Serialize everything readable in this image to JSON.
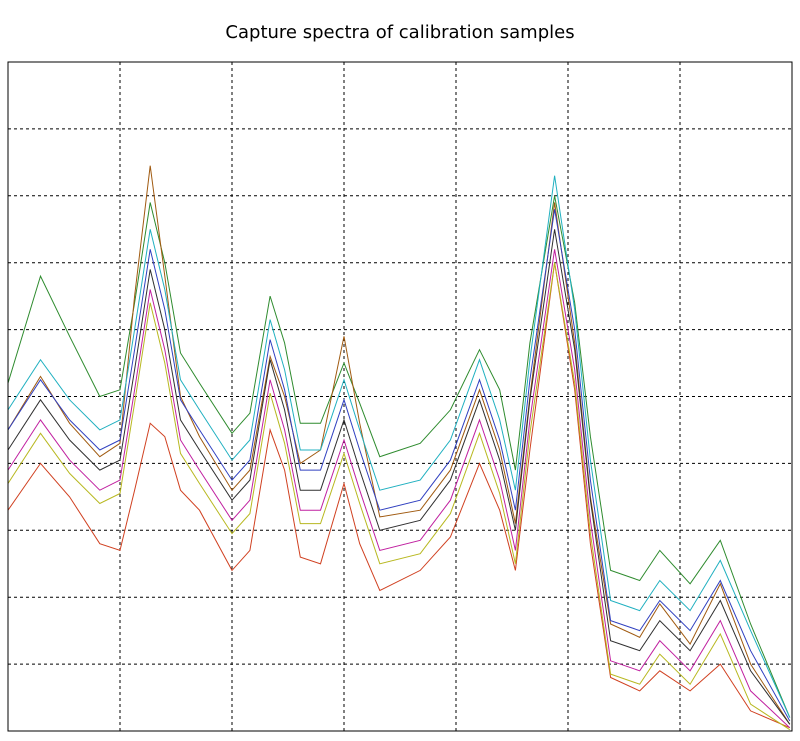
{
  "chart_data": {
    "type": "line",
    "title": "Capture spectra of calibration samples",
    "x": [
      0,
      29,
      55,
      82,
      100,
      113,
      127,
      140,
      154,
      171,
      200,
      216,
      234,
      247,
      261,
      279,
      300,
      314,
      332,
      368,
      395,
      421,
      439,
      453,
      466,
      488,
      506,
      520,
      538,
      564,
      582,
      609,
      636,
      663,
      698
    ],
    "series": [
      {
        "color": "#2e8b2e",
        "values": [
          5.2,
          6.8,
          5.9,
          5.0,
          5.1,
          6.4,
          7.9,
          7.0,
          5.65,
          5.2,
          4.45,
          4.75,
          6.5,
          5.8,
          4.6,
          4.6,
          5.5,
          4.9,
          4.1,
          4.3,
          4.8,
          5.7,
          5.1,
          3.9,
          5.8,
          8.0,
          6.4,
          4.4,
          2.4,
          2.25,
          2.7,
          2.2,
          2.85,
          1.6,
          0.2
        ]
      },
      {
        "color": "#d04020",
        "values": [
          3.3,
          4.0,
          3.5,
          2.8,
          2.7,
          3.6,
          4.6,
          4.4,
          3.6,
          3.3,
          2.4,
          2.7,
          4.5,
          3.9,
          2.6,
          2.5,
          3.7,
          2.8,
          2.1,
          2.4,
          2.9,
          4.0,
          3.3,
          2.4,
          4.2,
          7.0,
          5.1,
          2.8,
          0.8,
          0.6,
          0.9,
          0.6,
          1.0,
          0.3,
          0.05
        ]
      },
      {
        "color": "#a05a10",
        "values": [
          4.5,
          5.3,
          4.6,
          4.1,
          4.3,
          6.5,
          8.45,
          6.8,
          5.0,
          4.4,
          3.6,
          3.9,
          5.6,
          5.0,
          4.0,
          4.2,
          5.9,
          4.6,
          3.2,
          3.3,
          3.9,
          5.1,
          4.2,
          3.1,
          5.0,
          7.9,
          5.8,
          3.5,
          1.6,
          1.4,
          1.9,
          1.3,
          2.2,
          1.0,
          0.1
        ]
      },
      {
        "color": "#3040c0",
        "values": [
          4.5,
          5.25,
          4.65,
          4.2,
          4.35,
          5.7,
          7.2,
          6.3,
          4.95,
          4.5,
          3.75,
          4.05,
          5.85,
          5.1,
          3.9,
          3.9,
          4.95,
          4.2,
          3.3,
          3.45,
          4.05,
          5.25,
          4.35,
          3.3,
          5.25,
          7.8,
          6.0,
          3.75,
          1.65,
          1.5,
          1.95,
          1.5,
          2.25,
          1.2,
          0.15
        ]
      },
      {
        "color": "#c020a0",
        "values": [
          3.9,
          4.65,
          4.05,
          3.6,
          3.75,
          5.1,
          6.6,
          5.7,
          4.35,
          3.9,
          3.15,
          3.45,
          5.25,
          4.5,
          3.3,
          3.3,
          4.35,
          3.6,
          2.7,
          2.85,
          3.45,
          4.65,
          3.75,
          2.7,
          4.65,
          7.2,
          5.4,
          3.15,
          1.05,
          0.9,
          1.35,
          0.9,
          1.65,
          0.6,
          0.05
        ]
      },
      {
        "color": "#20b0c0",
        "values": [
          4.8,
          5.55,
          4.95,
          4.5,
          4.65,
          6.0,
          7.5,
          6.6,
          5.25,
          4.8,
          4.05,
          4.35,
          6.15,
          5.4,
          4.2,
          4.2,
          5.25,
          4.5,
          3.6,
          3.75,
          4.35,
          5.55,
          4.65,
          3.6,
          5.55,
          8.3,
          6.3,
          4.05,
          1.95,
          1.8,
          2.25,
          1.8,
          2.55,
          1.5,
          0.2
        ]
      },
      {
        "color": "#b8b820",
        "values": [
          3.7,
          4.45,
          3.85,
          3.4,
          3.55,
          4.9,
          6.4,
          5.5,
          4.15,
          3.7,
          2.95,
          3.25,
          5.05,
          4.3,
          3.1,
          3.1,
          4.15,
          3.4,
          2.5,
          2.65,
          3.25,
          4.45,
          3.55,
          2.5,
          4.45,
          7.0,
          5.2,
          2.95,
          0.85,
          0.7,
          1.15,
          0.7,
          1.45,
          0.4,
          0.02
        ]
      },
      {
        "color": "#303030",
        "values": [
          4.2,
          4.95,
          4.35,
          3.9,
          4.05,
          5.4,
          6.9,
          6.0,
          4.65,
          4.2,
          3.45,
          3.75,
          5.55,
          4.8,
          3.6,
          3.6,
          4.65,
          3.9,
          3.0,
          3.15,
          3.75,
          4.95,
          4.05,
          3.0,
          4.95,
          7.5,
          5.7,
          3.45,
          1.35,
          1.2,
          1.65,
          1.2,
          1.95,
          0.9,
          0.1
        ]
      }
    ],
    "xlim": [
      0,
      700
    ],
    "xticks": [
      100,
      200,
      300,
      400,
      500,
      600
    ],
    "ylim": [
      0,
      10
    ],
    "yticks": [
      1,
      2,
      3,
      4,
      5,
      6,
      7,
      8,
      9
    ],
    "grid": true
  }
}
